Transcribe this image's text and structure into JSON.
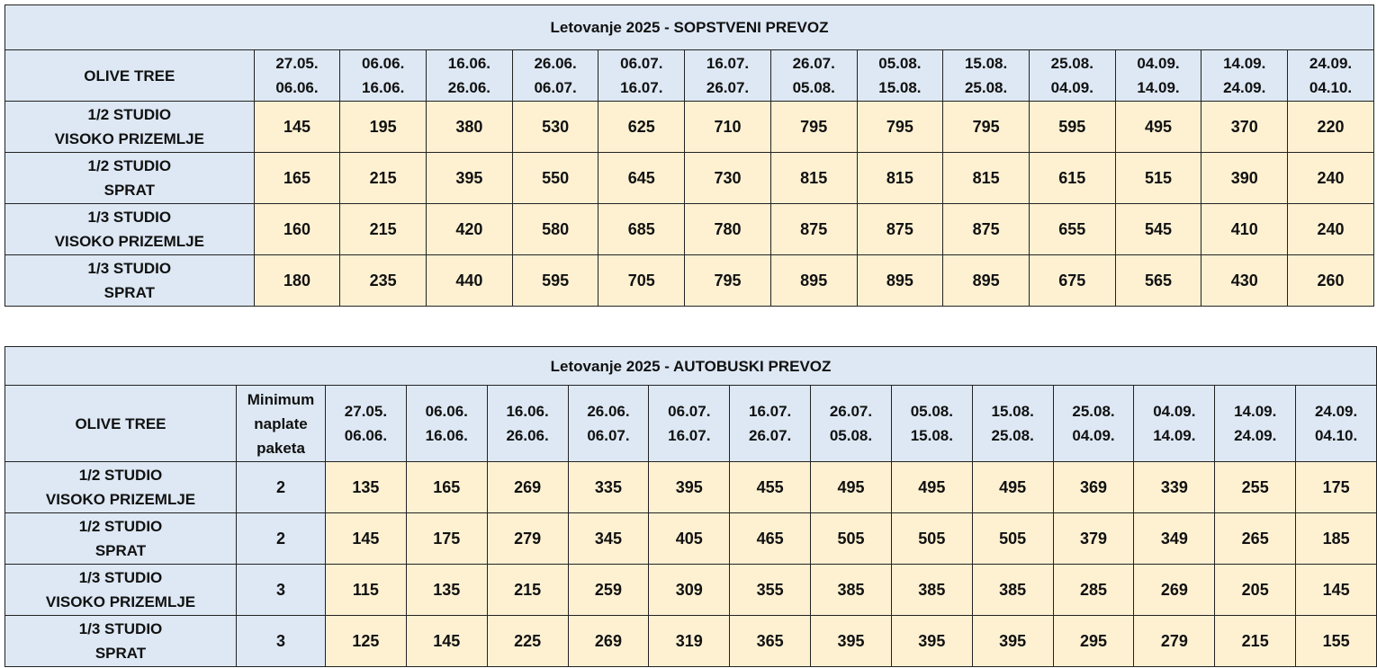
{
  "tables": [
    {
      "title": "Letovanje 2025 - SOPSTVENI PREVOZ",
      "corner": "OLIVE TREE",
      "periods": [
        [
          "27.05.",
          "06.06."
        ],
        [
          "06.06.",
          "16.06."
        ],
        [
          "16.06.",
          "26.06."
        ],
        [
          "26.06.",
          "06.07."
        ],
        [
          "06.07.",
          "16.07."
        ],
        [
          "16.07.",
          "26.07."
        ],
        [
          "26.07.",
          "05.08."
        ],
        [
          "05.08.",
          "15.08."
        ],
        [
          "15.08.",
          "25.08."
        ],
        [
          "25.08.",
          "04.09."
        ],
        [
          "04.09.",
          "14.09."
        ],
        [
          "14.09.",
          "24.09."
        ],
        [
          "24.09.",
          "04.10."
        ]
      ],
      "rows": [
        {
          "label": [
            "1/2 STUDIO",
            "VISOKO PRIZEMLJE"
          ],
          "prices": [
            "145",
            "195",
            "380",
            "530",
            "625",
            "710",
            "795",
            "795",
            "795",
            "595",
            "495",
            "370",
            "220"
          ]
        },
        {
          "label": [
            "1/2 STUDIO",
            "SPRAT"
          ],
          "prices": [
            "165",
            "215",
            "395",
            "550",
            "645",
            "730",
            "815",
            "815",
            "815",
            "615",
            "515",
            "390",
            "240"
          ]
        },
        {
          "label": [
            "1/3 STUDIO",
            "VISOKO PRIZEMLJE"
          ],
          "prices": [
            "160",
            "215",
            "420",
            "580",
            "685",
            "780",
            "875",
            "875",
            "875",
            "655",
            "545",
            "410",
            "240"
          ]
        },
        {
          "label": [
            "1/3 STUDIO",
            "SPRAT"
          ],
          "prices": [
            "180",
            "235",
            "440",
            "595",
            "705",
            "795",
            "895",
            "895",
            "895",
            "675",
            "565",
            "430",
            "260"
          ]
        }
      ]
    },
    {
      "title": "Letovanje 2025 - AUTOBUSKI PREVOZ",
      "corner": "OLIVE TREE",
      "min_header": [
        "Minimum",
        "naplate",
        "paketa"
      ],
      "periods": [
        [
          "27.05.",
          "06.06."
        ],
        [
          "06.06.",
          "16.06."
        ],
        [
          "16.06.",
          "26.06."
        ],
        [
          "26.06.",
          "06.07."
        ],
        [
          "06.07.",
          "16.07."
        ],
        [
          "16.07.",
          "26.07."
        ],
        [
          "26.07.",
          "05.08."
        ],
        [
          "05.08.",
          "15.08."
        ],
        [
          "15.08.",
          "25.08."
        ],
        [
          "25.08.",
          "04.09."
        ],
        [
          "04.09.",
          "14.09."
        ],
        [
          "14.09.",
          "24.09."
        ],
        [
          "24.09.",
          "04.10."
        ]
      ],
      "rows": [
        {
          "label": [
            "1/2 STUDIO",
            "VISOKO PRIZEMLJE"
          ],
          "min": "2",
          "prices": [
            "135",
            "165",
            "269",
            "335",
            "395",
            "455",
            "495",
            "495",
            "495",
            "369",
            "339",
            "255",
            "175"
          ]
        },
        {
          "label": [
            "1/2 STUDIO",
            "SPRAT"
          ],
          "min": "2",
          "prices": [
            "145",
            "175",
            "279",
            "345",
            "405",
            "465",
            "505",
            "505",
            "505",
            "379",
            "349",
            "265",
            "185"
          ]
        },
        {
          "label": [
            "1/3 STUDIO",
            "VISOKO PRIZEMLJE"
          ],
          "min": "3",
          "prices": [
            "115",
            "135",
            "215",
            "259",
            "309",
            "355",
            "385",
            "385",
            "385",
            "285",
            "269",
            "205",
            "145"
          ]
        },
        {
          "label": [
            "1/3 STUDIO",
            "SPRAT"
          ],
          "min": "3",
          "prices": [
            "125",
            "145",
            "225",
            "269",
            "319",
            "365",
            "395",
            "395",
            "395",
            "295",
            "279",
            "215",
            "155"
          ]
        }
      ]
    }
  ],
  "colors": {
    "header_bg": "#dde8f4",
    "price_bg": "#fdf1d2",
    "border": "#222222"
  }
}
